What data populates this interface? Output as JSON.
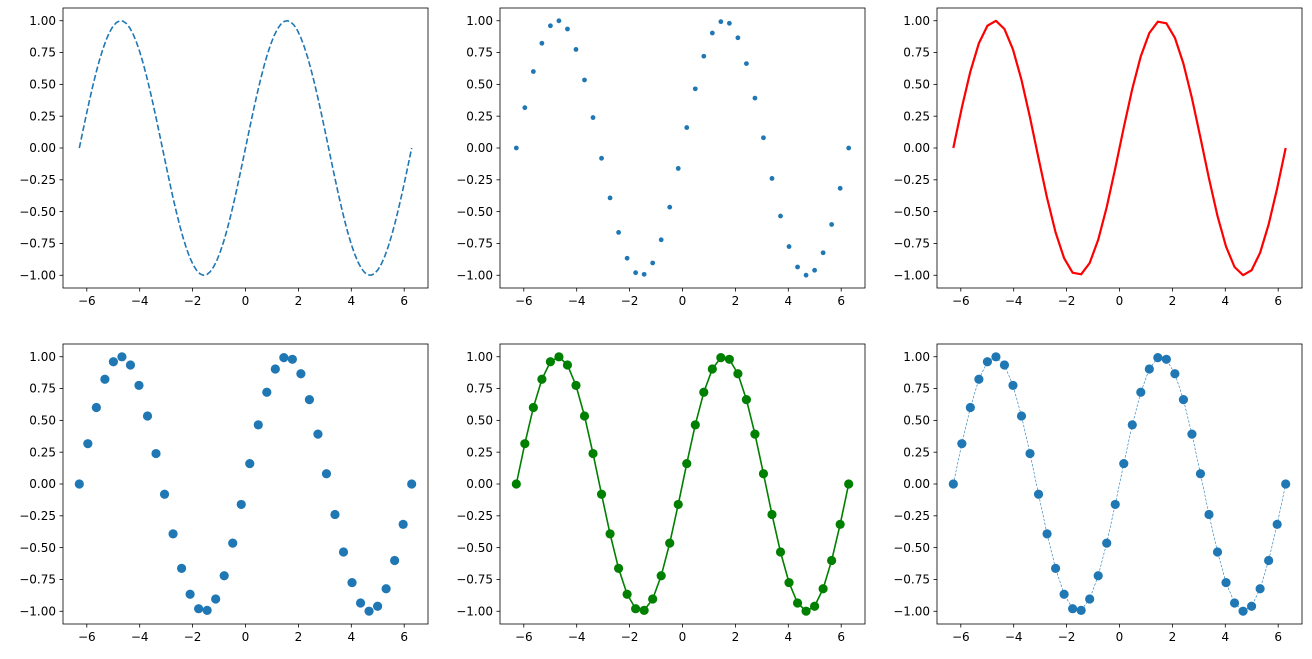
{
  "colors": {
    "default_blue": "#1f77b4",
    "red": "#ff0000",
    "green": "#008000"
  },
  "chart_data": [
    {
      "type": "line",
      "style": "dashed line, no markers",
      "color": "#1f77b4",
      "function": "sin(x)",
      "x_range": [
        -6.283,
        6.283
      ],
      "n_points": 100,
      "xlim": [
        -6.9,
        6.9
      ],
      "ylim": [
        -1.1,
        1.1
      ],
      "xticks": [
        "-6",
        "-4",
        "-2",
        "0",
        "2",
        "4",
        "6"
      ],
      "yticks": [
        "-1.00",
        "-0.75",
        "-0.50",
        "-0.25",
        "0.00",
        "0.25",
        "0.50",
        "0.75",
        "1.00"
      ]
    },
    {
      "type": "scatter",
      "style": "small dots, no line",
      "color": "#1f77b4",
      "function": "sin(x)",
      "x_range": [
        -6.283,
        6.283
      ],
      "n_points": 40,
      "xlim": [
        -6.9,
        6.9
      ],
      "ylim": [
        -1.1,
        1.1
      ],
      "xticks": [
        "-6",
        "-4",
        "-2",
        "0",
        "2",
        "4",
        "6"
      ],
      "yticks": [
        "-1.00",
        "-0.75",
        "-0.50",
        "-0.25",
        "0.00",
        "0.25",
        "0.50",
        "0.75",
        "1.00"
      ]
    },
    {
      "type": "line",
      "style": "solid thick line",
      "color": "#ff0000",
      "function": "sin(x)",
      "x_range": [
        -6.283,
        6.283
      ],
      "n_points": 40,
      "xlim": [
        -6.9,
        6.9
      ],
      "ylim": [
        -1.1,
        1.1
      ],
      "xticks": [
        "-6",
        "-4",
        "-2",
        "0",
        "2",
        "4",
        "6"
      ],
      "yticks": [
        "-1.00",
        "-0.75",
        "-0.50",
        "-0.25",
        "0.00",
        "0.25",
        "0.50",
        "0.75",
        "1.00"
      ]
    },
    {
      "type": "scatter",
      "style": "circle markers, no line",
      "color": "#1f77b4",
      "function": "sin(x)",
      "x_range": [
        -6.283,
        6.283
      ],
      "n_points": 40,
      "xlim": [
        -6.9,
        6.9
      ],
      "ylim": [
        -1.1,
        1.1
      ],
      "xticks": [
        "-6",
        "-4",
        "-2",
        "0",
        "2",
        "4",
        "6"
      ],
      "yticks": [
        "-1.00",
        "-0.75",
        "-0.50",
        "-0.25",
        "0.00",
        "0.25",
        "0.50",
        "0.75",
        "1.00"
      ]
    },
    {
      "type": "line",
      "style": "solid line with circle markers",
      "color": "#008000",
      "function": "sin(x)",
      "x_range": [
        -6.283,
        6.283
      ],
      "n_points": 40,
      "xlim": [
        -6.9,
        6.9
      ],
      "ylim": [
        -1.1,
        1.1
      ],
      "xticks": [
        "-6",
        "-4",
        "-2",
        "0",
        "2",
        "4",
        "6"
      ],
      "yticks": [
        "-1.00",
        "-0.75",
        "-0.50",
        "-0.25",
        "0.00",
        "0.25",
        "0.50",
        "0.75",
        "1.00"
      ]
    },
    {
      "type": "line",
      "style": "thin dashed line with circle markers",
      "color": "#1f77b4",
      "function": "sin(x)",
      "x_range": [
        -6.283,
        6.283
      ],
      "n_points": 40,
      "xlim": [
        -6.9,
        6.9
      ],
      "ylim": [
        -1.1,
        1.1
      ],
      "xticks": [
        "-6",
        "-4",
        "-2",
        "0",
        "2",
        "4",
        "6"
      ],
      "yticks": [
        "-1.00",
        "-0.75",
        "-0.50",
        "-0.25",
        "0.00",
        "0.25",
        "0.50",
        "0.75",
        "1.00"
      ]
    }
  ]
}
